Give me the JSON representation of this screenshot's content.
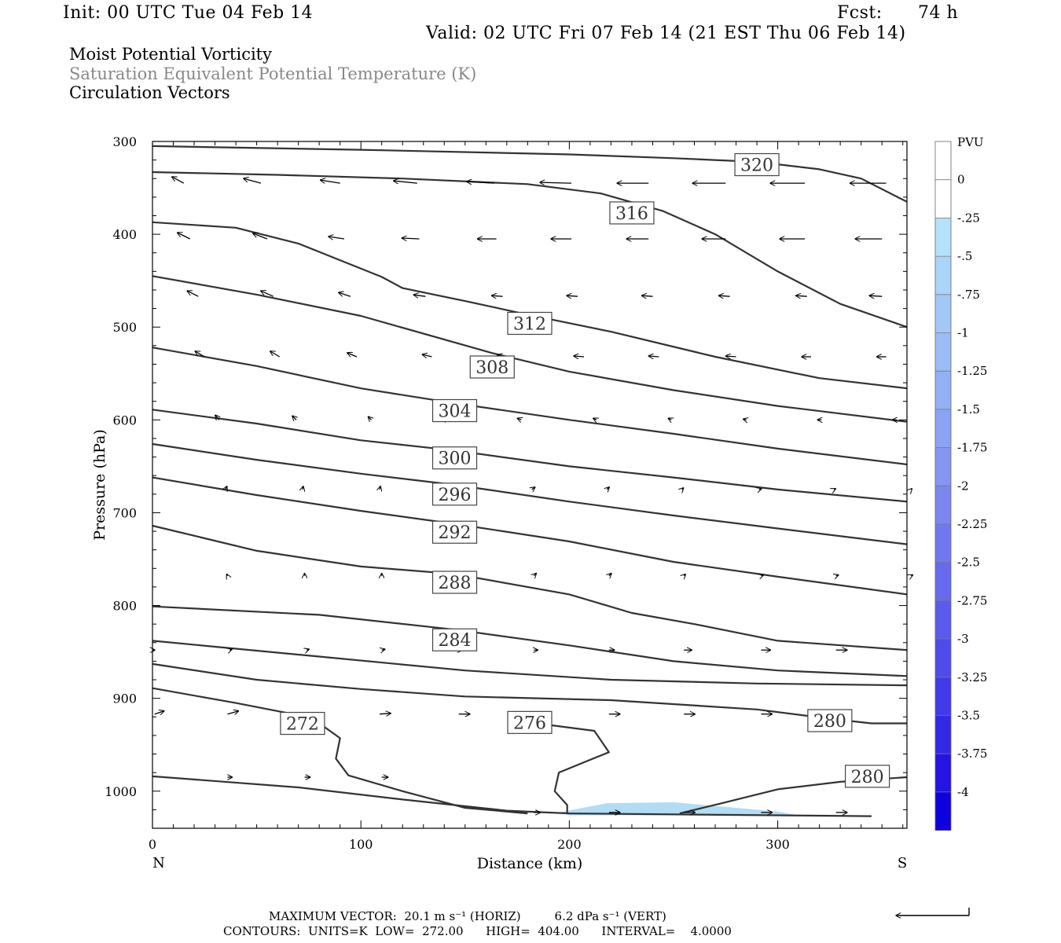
{
  "header": {
    "init": "Init: 00 UTC Tue 04 Feb 14",
    "fcst_label": "Fcst:",
    "fcst_value": "74 h",
    "valid": "Valid: 02 UTC Fri 07 Feb 14 (21 EST Thu 06 Feb 14)",
    "title1": "Moist Potential Vorticity",
    "title2": "Saturation Equivalent Potential Temperature (K)",
    "title3": "Circulation Vectors"
  },
  "colors": {
    "title2": "#888888",
    "contour": "#333333",
    "pv_fill": "#a9d8f2"
  },
  "chart_data": {
    "type": "cross-section",
    "xlabel": "Distance (km)",
    "ylabel": "Pressure (hPa)",
    "xlim": [
      0,
      362
    ],
    "ylim": [
      1040,
      300
    ],
    "x_ticks": [
      "0",
      "100",
      "200",
      "300"
    ],
    "y_ticks": [
      "300",
      "400",
      "500",
      "600",
      "700",
      "800",
      "900",
      "1000"
    ],
    "x_end_labels": {
      "left": "N",
      "right": "S"
    },
    "colorbar": {
      "unit": "PVU",
      "levels": [
        "0",
        "-.25",
        "-.5",
        "-.75",
        "-1",
        "-1.25",
        "-1.5",
        "-1.75",
        "-2",
        "-2.25",
        "-2.5",
        "-2.75",
        "-3",
        "-3.25",
        "-3.5",
        "-3.75",
        "-4"
      ],
      "colors": [
        "#ffffff",
        "#ffffff",
        "#b5e2fb",
        "#aad4f8",
        "#a3c8f8",
        "#9bbcf6",
        "#94b0f5",
        "#8ca2f4",
        "#8495f2",
        "#7b86f1",
        "#7178ef",
        "#6769ee",
        "#5c5aec",
        "#504aea",
        "#4339e8",
        "#3527e6",
        "#2614e4",
        "#0f00e0"
      ]
    },
    "contours": [
      {
        "label": "320",
        "label_at": [
          290,
          325
        ],
        "points": [
          [
            0,
            305
          ],
          [
            100,
            309
          ],
          [
            200,
            314
          ],
          [
            250,
            318
          ],
          [
            290,
            322
          ],
          [
            320,
            330
          ],
          [
            340,
            340
          ],
          [
            362,
            365
          ]
        ]
      },
      {
        "label": "316",
        "label_at": [
          230,
          377
        ],
        "points": [
          [
            0,
            333
          ],
          [
            60,
            336
          ],
          [
            120,
            340
          ],
          [
            180,
            346
          ],
          [
            215,
            356
          ],
          [
            245,
            375
          ],
          [
            270,
            400
          ],
          [
            300,
            440
          ],
          [
            330,
            475
          ],
          [
            362,
            500
          ]
        ]
      },
      {
        "label": "312",
        "label_at": [
          181,
          496
        ],
        "points": [
          [
            0,
            387
          ],
          [
            40,
            393
          ],
          [
            70,
            410
          ],
          [
            110,
            446
          ],
          [
            120,
            458
          ],
          [
            150,
            472
          ],
          [
            181,
            487
          ],
          [
            220,
            505
          ],
          [
            270,
            532
          ],
          [
            320,
            555
          ],
          [
            362,
            566
          ]
        ]
      },
      {
        "label": "308",
        "label_at": [
          163,
          543
        ],
        "points": [
          [
            0,
            445
          ],
          [
            50,
            465
          ],
          [
            100,
            488
          ],
          [
            163,
            528
          ],
          [
            200,
            548
          ],
          [
            250,
            568
          ],
          [
            300,
            585
          ],
          [
            362,
            602
          ]
        ]
      },
      {
        "label": "304",
        "label_at": [
          145,
          590
        ],
        "points": [
          [
            0,
            522
          ],
          [
            50,
            542
          ],
          [
            100,
            566
          ],
          [
            145,
            582
          ],
          [
            200,
            600
          ],
          [
            250,
            615
          ],
          [
            300,
            631
          ],
          [
            362,
            648
          ]
        ]
      },
      {
        "label": "300",
        "label_at": [
          145,
          641
        ],
        "points": [
          [
            0,
            589
          ],
          [
            50,
            604
          ],
          [
            100,
            622
          ],
          [
            145,
            633
          ],
          [
            200,
            650
          ],
          [
            250,
            662
          ],
          [
            300,
            675
          ],
          [
            362,
            688
          ]
        ]
      },
      {
        "label": "296",
        "label_at": [
          145,
          680
        ],
        "points": [
          [
            0,
            626
          ],
          [
            50,
            643
          ],
          [
            100,
            658
          ],
          [
            145,
            670
          ],
          [
            200,
            688
          ],
          [
            250,
            703
          ],
          [
            300,
            717
          ],
          [
            362,
            734
          ]
        ]
      },
      {
        "label": "292",
        "label_at": [
          145,
          721
        ],
        "points": [
          [
            0,
            662
          ],
          [
            50,
            681
          ],
          [
            100,
            698
          ],
          [
            145,
            712
          ],
          [
            200,
            731
          ],
          [
            250,
            753
          ],
          [
            300,
            769
          ],
          [
            362,
            788
          ]
        ]
      },
      {
        "label": "288",
        "label_at": [
          145,
          775
        ],
        "points": [
          [
            0,
            714
          ],
          [
            50,
            741
          ],
          [
            100,
            758
          ],
          [
            145,
            766
          ],
          [
            200,
            788
          ],
          [
            230,
            808
          ],
          [
            260,
            820
          ],
          [
            300,
            838
          ],
          [
            362,
            848
          ]
        ]
      },
      {
        "label": "284",
        "label_at": [
          145,
          837
        ],
        "points": [
          [
            0,
            801
          ],
          [
            80,
            810
          ],
          [
            145,
            826
          ],
          [
            200,
            843
          ],
          [
            250,
            860
          ],
          [
            300,
            870
          ],
          [
            362,
            876
          ]
        ]
      },
      {
        "label": "",
        "label_at": null,
        "points": [
          [
            0,
            838
          ],
          [
            80,
            855
          ],
          [
            150,
            870
          ],
          [
            220,
            880
          ],
          [
            290,
            884
          ],
          [
            362,
            886
          ]
        ]
      },
      {
        "label": "280",
        "label_at": [
          325,
          924
        ],
        "points": [
          [
            0,
            863
          ],
          [
            50,
            880
          ],
          [
            100,
            890
          ],
          [
            150,
            898
          ],
          [
            220,
            902
          ],
          [
            290,
            912
          ],
          [
            325,
            922
          ],
          [
            345,
            927
          ],
          [
            362,
            927
          ]
        ]
      },
      {
        "label": "272",
        "label_at": [
          72,
          927
        ],
        "points": [
          [
            0,
            889
          ],
          [
            40,
            905
          ],
          [
            72,
            919
          ],
          [
            82,
            930
          ],
          [
            90,
            943
          ],
          [
            88,
            965
          ],
          [
            94,
            983
          ],
          [
            120,
            1000
          ],
          [
            150,
            1018
          ],
          [
            180,
            1024
          ]
        ]
      },
      {
        "label": "276",
        "label_at": [
          181,
          926
        ],
        "points": [
          [
            181,
            926
          ],
          [
            212,
            935
          ],
          [
            219,
            958
          ],
          [
            195,
            980
          ],
          [
            193,
            1000
          ],
          [
            199,
            1015
          ],
          [
            199,
            1024
          ]
        ]
      },
      {
        "label": "280",
        "label_at": [
          343,
          984
        ],
        "points": [
          [
            253,
            1024
          ],
          [
            275,
            1012
          ],
          [
            300,
            998
          ],
          [
            330,
            990
          ],
          [
            362,
            985
          ]
        ]
      },
      {
        "label": "",
        "label_at": null,
        "points": [
          [
            0,
            984
          ],
          [
            70,
            996
          ],
          [
            120,
            1009
          ],
          [
            170,
            1021
          ],
          [
            200,
            1024
          ],
          [
            345,
            1027
          ]
        ]
      }
    ],
    "pv_region": [
      [
        195,
        1023
      ],
      [
        218,
        1013
      ],
      [
        250,
        1012
      ],
      [
        275,
        1017
      ],
      [
        300,
        1022
      ],
      [
        310,
        1026
      ],
      [
        200,
        1026
      ]
    ],
    "vectors": [
      {
        "p": 345,
        "xs": [
          15,
          52,
          90,
          127,
          164,
          201,
          238,
          275,
          313,
          352
        ],
        "vx": [
          -15,
          -22,
          -25,
          -30,
          -35,
          -40,
          -40,
          -42,
          -44,
          -46
        ],
        "vy": [
          -8,
          -6,
          -4,
          -3,
          -2,
          -1,
          0,
          0,
          0,
          0
        ]
      },
      {
        "p": 405,
        "xs": [
          18,
          55,
          92,
          128,
          165,
          201,
          238,
          275,
          313,
          350
        ],
        "vx": [
          -16,
          -18,
          -20,
          -22,
          -24,
          -26,
          -28,
          -30,
          -32,
          -34
        ],
        "vy": [
          -8,
          -7,
          -3,
          -1,
          0,
          0,
          0,
          0,
          0,
          0
        ]
      },
      {
        "p": 467,
        "xs": [
          22,
          58,
          95,
          131,
          168,
          204,
          240,
          277,
          314,
          350
        ],
        "vx": [
          -14,
          -16,
          -15,
          -15,
          -14,
          -14,
          -14,
          -14,
          -14,
          -16
        ],
        "vy": [
          -7,
          -7,
          -5,
          -2,
          -1,
          -1,
          -1,
          -1,
          -1,
          -1
        ]
      },
      {
        "p": 532,
        "xs": [
          25,
          61,
          98,
          134,
          170,
          207,
          243,
          280,
          316,
          352
        ],
        "vx": [
          -12,
          -12,
          -12,
          -12,
          -12,
          -13,
          -13,
          -13,
          -12,
          -12
        ],
        "vy": [
          -7,
          -7,
          -5,
          -3,
          -2,
          -1,
          -1,
          -1,
          0,
          0
        ]
      },
      {
        "p": 600,
        "xs": [
          32,
          69,
          105,
          141,
          177,
          213,
          249,
          285,
          321,
          357
        ],
        "vx": [
          -5,
          -5,
          -4,
          -4,
          -5,
          -4,
          -4,
          -4,
          -5,
          -5
        ],
        "vy": [
          -6,
          -5,
          -4,
          -3,
          -2,
          -2,
          -2,
          -1,
          0,
          0
        ]
      },
      {
        "p": 675,
        "xs": [
          35,
          72,
          109,
          145,
          182,
          218,
          254,
          291,
          327,
          364
        ],
        "vx": [
          2,
          1,
          1,
          2,
          4,
          3,
          2,
          3,
          2,
          1
        ],
        "vy": [
          -4,
          -4,
          -4,
          -4,
          -3,
          -3,
          -2,
          -1,
          -1,
          -1
        ]
      },
      {
        "p": 768,
        "xs": [
          36,
          73,
          110,
          147,
          183,
          219,
          255,
          292,
          328,
          364
        ],
        "vx": [
          -1,
          0,
          0,
          2,
          3,
          3,
          2,
          3,
          3,
          2
        ],
        "vy": [
          -2,
          -3,
          -3,
          -3,
          -3,
          -3,
          -2,
          -1,
          -1,
          -1
        ]
      },
      {
        "p": 848,
        "xs": [
          0,
          37,
          74,
          110,
          147,
          183,
          219,
          255,
          292,
          328
        ],
        "vx": [
          3,
          3,
          3,
          4,
          4,
          5,
          7,
          10,
          12,
          14
        ],
        "vy": [
          0,
          -1,
          -1,
          -1,
          0,
          0,
          0,
          0,
          0,
          0
        ]
      },
      {
        "p": 917,
        "xs": [
          1,
          36,
          109,
          147,
          183,
          219,
          255,
          292,
          328
        ],
        "vx": [
          12,
          14,
          14,
          14,
          14,
          14,
          14,
          14,
          14
        ],
        "vy": [
          -4,
          -4,
          -1,
          0,
          0,
          0,
          0,
          0,
          0
        ]
      },
      {
        "p": 985,
        "xs": [
          36,
          73,
          110
        ],
        "vx": [
          6,
          7,
          8
        ],
        "vy": [
          0,
          0,
          0
        ]
      },
      {
        "p": 1023,
        "xs": [
          183,
          219,
          255,
          292,
          328
        ],
        "vx": [
          8,
          14,
          14,
          14,
          14
        ],
        "vy": [
          0,
          0,
          0,
          0,
          0
        ]
      }
    ]
  },
  "footer": {
    "max_vector": "MAXIMUM VECTOR:  20.1 m s⁻¹ (HORIZ)         6.2 dPa s⁻¹ (VERT)",
    "contours": "CONTOURS:  UNITS=K  LOW=  272.00      HIGH=  404.00      INTERVAL=    4.0000"
  }
}
